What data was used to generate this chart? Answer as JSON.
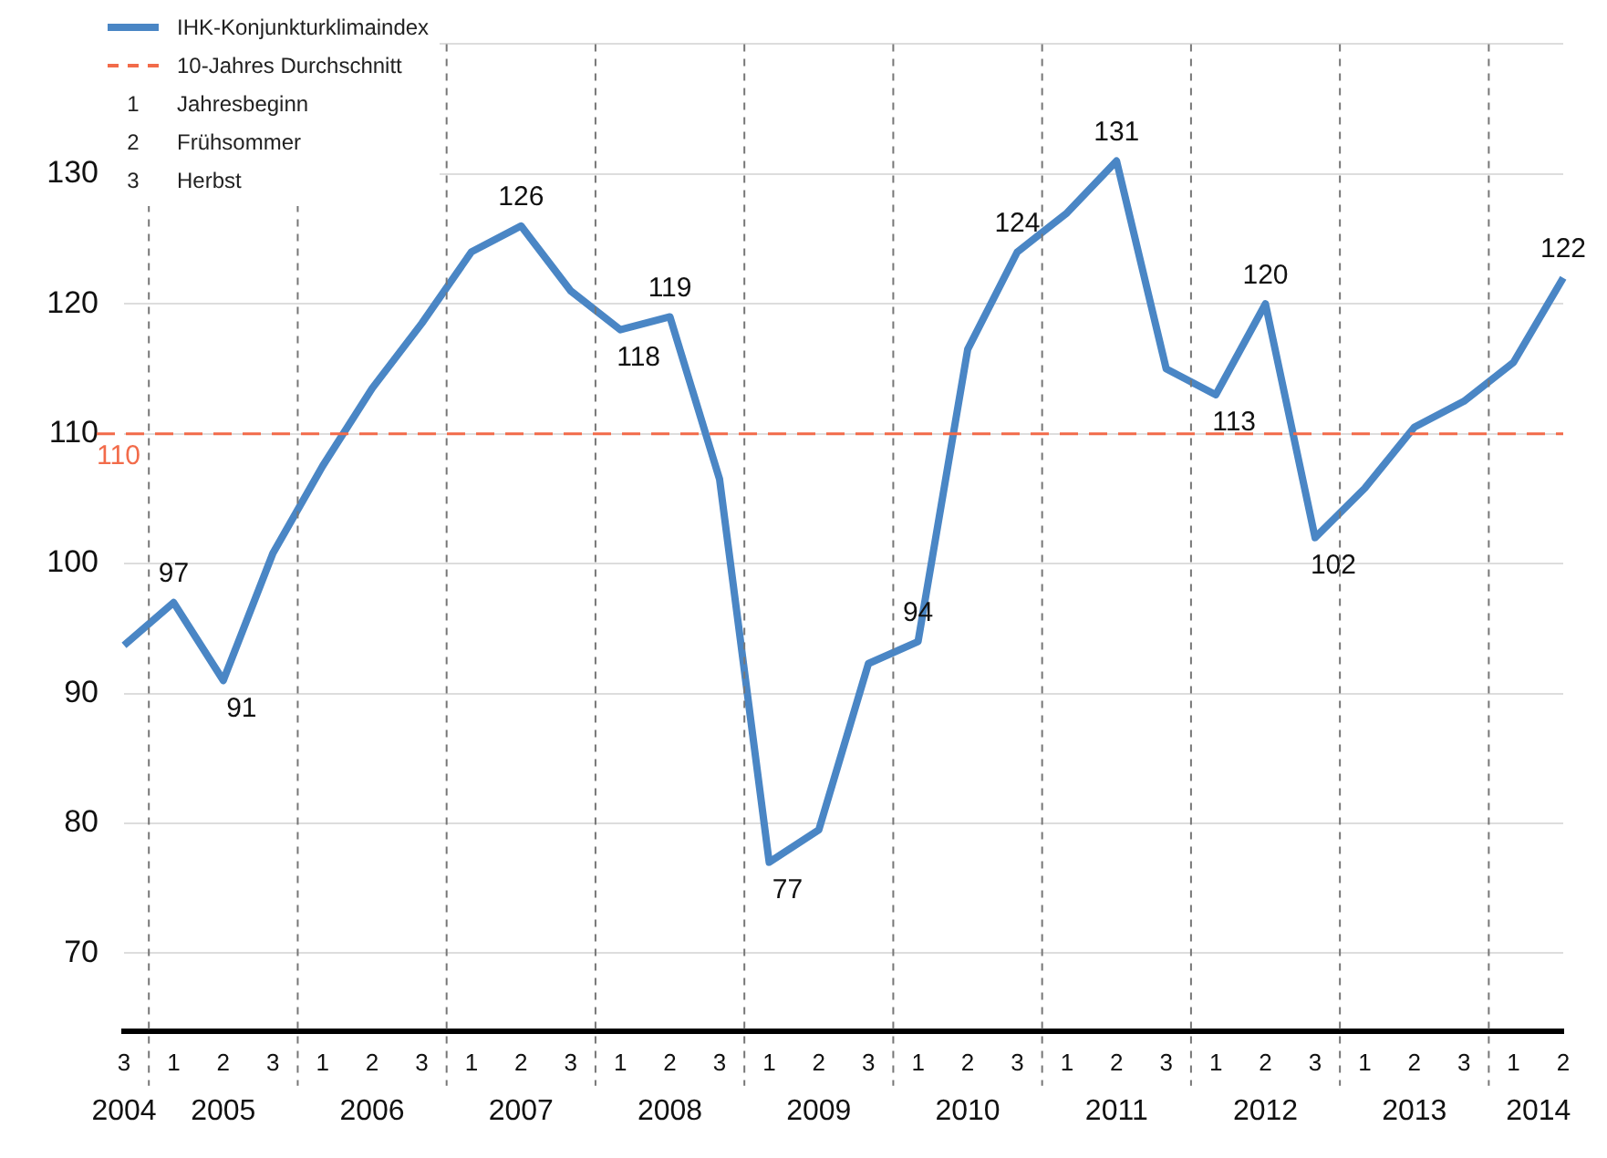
{
  "chart_data": {
    "type": "line",
    "categories": [
      "3",
      "1",
      "2",
      "3",
      "1",
      "2",
      "3",
      "1",
      "2",
      "3",
      "1",
      "2",
      "3",
      "1",
      "2",
      "3",
      "1",
      "2",
      "3",
      "1",
      "2",
      "3",
      "1",
      "2",
      "3",
      "1",
      "2",
      "3",
      "1",
      "2"
    ],
    "series": [
      {
        "name": "IHK-Konjunkturklimaindex",
        "color": "#4a86c5",
        "values": [
          93.7,
          97,
          91,
          100.8,
          107.5,
          113.5,
          118.5,
          124,
          126,
          121,
          118,
          119,
          106.5,
          77,
          79.5,
          92.3,
          94,
          116.5,
          124,
          127,
          131,
          115,
          113,
          120,
          102,
          105.8,
          110.5,
          112.5,
          115.5,
          122
        ],
        "value_labels": [
          null,
          "97",
          "91",
          null,
          null,
          null,
          null,
          null,
          "126",
          null,
          "118",
          "119",
          null,
          "77",
          null,
          null,
          "94",
          null,
          "124",
          null,
          "131",
          null,
          "113",
          "120",
          "102",
          null,
          null,
          null,
          null,
          "122"
        ]
      }
    ],
    "ylim": [
      64,
      140
    ],
    "yticks": [
      70,
      80,
      90,
      100,
      110,
      120,
      130,
      {
        "value": 140,
        "label": null
      }
    ],
    "grid": "y",
    "legend": "top left",
    "line_style": "solid",
    "marker": "none",
    "ref_lines": [
      {
        "axis": "y",
        "value": 110,
        "label": "10-Jahres Durchschnitt",
        "color": "#f26b4a",
        "line_style": "dashed"
      }
    ],
    "annotations": [
      {
        "text": "110",
        "y": 110
      },
      "1 Jahresbeginn",
      "2 Frühsommer",
      "3 Herbst",
      "2004",
      "2005",
      "2006",
      "2007",
      "2008",
      "2009",
      "2010",
      "2011",
      "2012",
      "2013",
      "2014"
    ]
  }
}
